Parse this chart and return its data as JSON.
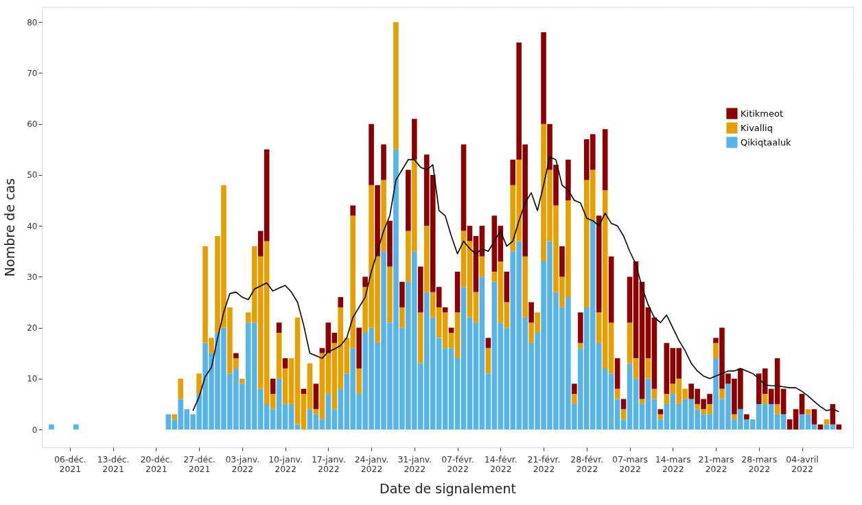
{
  "chart_data": {
    "type": "bar",
    "stacked": true,
    "xlabel": "Date de signalement",
    "ylabel": "Nombre de cas",
    "legend": "top right",
    "grid": true,
    "x": [
      "2021-12-03",
      "2021-12-07",
      "2021-12-22",
      "2021-12-23",
      "2021-12-24",
      "2021-12-25",
      "2021-12-26",
      "2021-12-27",
      "2021-12-28",
      "2021-12-29",
      "2021-12-30",
      "2021-12-31",
      "2022-01-01",
      "2022-01-02",
      "2022-01-03",
      "2022-01-04",
      "2022-01-05",
      "2022-01-06",
      "2022-01-07",
      "2022-01-08",
      "2022-01-09",
      "2022-01-10",
      "2022-01-11",
      "2022-01-12",
      "2022-01-13",
      "2022-01-14",
      "2022-01-15",
      "2022-01-16",
      "2022-01-17",
      "2022-01-18",
      "2022-01-19",
      "2022-01-20",
      "2022-01-21",
      "2022-01-22",
      "2022-01-23",
      "2022-01-24",
      "2022-01-25",
      "2022-01-26",
      "2022-01-27",
      "2022-01-28",
      "2022-01-29",
      "2022-01-30",
      "2022-01-31",
      "2022-02-01",
      "2022-02-02",
      "2022-02-03",
      "2022-02-04",
      "2022-02-05",
      "2022-02-06",
      "2022-02-07",
      "2022-02-08",
      "2022-02-09",
      "2022-02-10",
      "2022-02-11",
      "2022-02-12",
      "2022-02-13",
      "2022-02-14",
      "2022-02-15",
      "2022-02-16",
      "2022-02-17",
      "2022-02-18",
      "2022-02-19",
      "2022-02-20",
      "2022-02-21",
      "2022-02-22",
      "2022-02-23",
      "2022-02-24",
      "2022-02-25",
      "2022-02-26",
      "2022-02-27",
      "2022-02-28",
      "2022-03-01",
      "2022-03-02",
      "2022-03-03",
      "2022-03-04",
      "2022-03-05",
      "2022-03-06",
      "2022-03-07",
      "2022-03-08",
      "2022-03-09",
      "2022-03-10",
      "2022-03-11",
      "2022-03-12",
      "2022-03-13",
      "2022-03-14",
      "2022-03-15",
      "2022-03-16",
      "2022-03-17",
      "2022-03-18",
      "2022-03-19",
      "2022-03-20",
      "2022-03-21",
      "2022-03-22",
      "2022-03-23",
      "2022-03-24",
      "2022-03-25",
      "2022-03-26",
      "2022-03-27",
      "2022-03-28",
      "2022-03-29",
      "2022-03-30",
      "2022-03-31",
      "2022-04-01",
      "2022-04-02",
      "2022-04-03",
      "2022-04-04",
      "2022-04-05",
      "2022-04-06",
      "2022-04-07",
      "2022-04-08",
      "2022-04-09",
      "2022-04-10"
    ],
    "series": [
      {
        "name": "Qikiqtaaluk",
        "color": "#56b4e9",
        "values": [
          1,
          1,
          3,
          2,
          6,
          4,
          3,
          7,
          17,
          15,
          19,
          20,
          11,
          12,
          9,
          21,
          21,
          8,
          5,
          4,
          10,
          5,
          5,
          1,
          0,
          4,
          3,
          2,
          7,
          4,
          8,
          11,
          16,
          7,
          19,
          20,
          17,
          35,
          21,
          55,
          20,
          29,
          35,
          13,
          27,
          22,
          18,
          16,
          16,
          14,
          28,
          22,
          21,
          30,
          11,
          29,
          21,
          20,
          35,
          37,
          22,
          17,
          19,
          33,
          37,
          27,
          24,
          26,
          5,
          16,
          24,
          41,
          17,
          12,
          11,
          6,
          2,
          13,
          10,
          5,
          10,
          6,
          2,
          5,
          7,
          5,
          6,
          6,
          4,
          3,
          3,
          14,
          6,
          9,
          2,
          4,
          2,
          2,
          5,
          5,
          5,
          3,
          3,
          0,
          0,
          3,
          3,
          1,
          0,
          1,
          1,
          0
        ]
      },
      {
        "name": "Kivalliq",
        "color": "#e69f00",
        "values": [
          0,
          0,
          0,
          1,
          4,
          0,
          0,
          4,
          19,
          3,
          19,
          28,
          13,
          2,
          1,
          2,
          15,
          26,
          32,
          3,
          9,
          7,
          9,
          21,
          7,
          9,
          1,
          13,
          8,
          13,
          16,
          7,
          26,
          5,
          9,
          28,
          17,
          14,
          11,
          25,
          4,
          10,
          18,
          10,
          13,
          5,
          6,
          7,
          3,
          9,
          11,
          15,
          6,
          4,
          5,
          2,
          12,
          5,
          13,
          16,
          12,
          4,
          4,
          27,
          14,
          17,
          6,
          19,
          2,
          1,
          25,
          10,
          6,
          35,
          10,
          2,
          2,
          8,
          4,
          1,
          4,
          2,
          1,
          2,
          2,
          5,
          2,
          0,
          1,
          1,
          2,
          3,
          2,
          0,
          1,
          0,
          0,
          0,
          0,
          2,
          0,
          2,
          0,
          0,
          0,
          0,
          1,
          0,
          0,
          1,
          0,
          0
        ]
      },
      {
        "name": "Kitikmeot",
        "color": "#8b0000",
        "values": [
          0,
          0,
          0,
          0,
          0,
          0,
          0,
          0,
          0,
          0,
          0,
          0,
          0,
          1,
          0,
          0,
          0,
          5,
          18,
          3,
          2,
          2,
          0,
          0,
          1,
          0,
          5,
          1,
          6,
          2,
          2,
          0,
          2,
          8,
          2,
          12,
          14,
          7,
          9,
          0,
          5,
          12,
          8,
          9,
          14,
          23,
          4,
          1,
          1,
          8,
          17,
          3,
          11,
          6,
          2,
          11,
          7,
          6,
          5,
          23,
          22,
          4,
          0,
          18,
          9,
          8,
          6,
          8,
          2,
          6,
          8,
          7,
          19,
          12,
          13,
          6,
          2,
          9,
          19,
          23,
          10,
          14,
          1,
          10,
          7,
          6,
          0,
          3,
          3,
          2,
          2,
          1,
          12,
          2,
          7,
          8,
          1,
          0,
          6,
          5,
          3,
          9,
          5,
          2,
          4,
          4,
          0,
          3,
          1,
          0,
          4,
          1
        ]
      },
      {
        "type": "line",
        "color": "#000000",
        "x": [
          "2021-12-26",
          "2021-12-27",
          "2021-12-28",
          "2021-12-29",
          "2021-12-30",
          "2021-12-31",
          "2022-01-01",
          "2022-01-02",
          "2022-01-03",
          "2022-01-04",
          "2022-01-05",
          "2022-01-06",
          "2022-01-07",
          "2022-01-08",
          "2022-01-09",
          "2022-01-10",
          "2022-01-11",
          "2022-01-12",
          "2022-01-13",
          "2022-01-14",
          "2022-01-15",
          "2022-01-16",
          "2022-01-17",
          "2022-01-18",
          "2022-01-19",
          "2022-01-20",
          "2022-01-21",
          "2022-01-22",
          "2022-01-23",
          "2022-01-24",
          "2022-01-25",
          "2022-01-26",
          "2022-01-27",
          "2022-01-28",
          "2022-01-29",
          "2022-01-30",
          "2022-01-31",
          "2022-02-01",
          "2022-02-02",
          "2022-02-03",
          "2022-02-04",
          "2022-02-05",
          "2022-02-06",
          "2022-02-07",
          "2022-02-08",
          "2022-02-09",
          "2022-02-10",
          "2022-02-11",
          "2022-02-12",
          "2022-02-13",
          "2022-02-14",
          "2022-02-15",
          "2022-02-16",
          "2022-02-17",
          "2022-02-18",
          "2022-02-19",
          "2022-02-20",
          "2022-02-21",
          "2022-02-22",
          "2022-02-23",
          "2022-02-24",
          "2022-02-25",
          "2022-02-26",
          "2022-02-27",
          "2022-02-28",
          "2022-03-01",
          "2022-03-02",
          "2022-03-03",
          "2022-03-04",
          "2022-03-05",
          "2022-03-06",
          "2022-03-07",
          "2022-03-08",
          "2022-03-09",
          "2022-03-10",
          "2022-03-11",
          "2022-03-12",
          "2022-03-13",
          "2022-03-14",
          "2022-03-15",
          "2022-03-16",
          "2022-03-17",
          "2022-03-18",
          "2022-03-19",
          "2022-03-20",
          "2022-03-21",
          "2022-03-22",
          "2022-03-23",
          "2022-03-24",
          "2022-03-25",
          "2022-03-26",
          "2022-03-27",
          "2022-03-28",
          "2022-03-29",
          "2022-03-30",
          "2022-03-31",
          "2022-04-01",
          "2022-04-02",
          "2022-04-03",
          "2022-04-04",
          "2022-04-05",
          "2022-04-06",
          "2022-04-07",
          "2022-04-08",
          "2022-04-09",
          "2022-04-10"
        ],
        "values": [
          3.7,
          6.4,
          10.4,
          12.2,
          17.9,
          23,
          26.7,
          27,
          26,
          25.5,
          27.6,
          28.2,
          28.8,
          27.2,
          27.8,
          28.3,
          27,
          25,
          20.5,
          15,
          14.5,
          14,
          15.3,
          15.8,
          16.5,
          18,
          22,
          24,
          26,
          31,
          35,
          39,
          42,
          49,
          51,
          53,
          53,
          51.5,
          51,
          52,
          43,
          42,
          38,
          34.5,
          37,
          35.5,
          34.5,
          35.5,
          35,
          37,
          39,
          36,
          37,
          41,
          44.5,
          46.5,
          43,
          48,
          53.5,
          53,
          48,
          47,
          45,
          44.5,
          41.5,
          41,
          40,
          42.5,
          40.5,
          40,
          38,
          35,
          32.5,
          28,
          24.5,
          22,
          21,
          22.5,
          20,
          17.5,
          15.5,
          13,
          11.5,
          10.5,
          10,
          10.5,
          11,
          11.5,
          11.5,
          12,
          11.5,
          11,
          10,
          8.8,
          8.6,
          8.6,
          8.4,
          8.2,
          8.2,
          7.5,
          6.6,
          5.5,
          4.5,
          3.7,
          4,
          3.5
        ]
      }
    ],
    "xlim": [
      "2021-12-02",
      "2022-04-11T18:00"
    ],
    "xticks": [
      {
        "value": "2021-12-06",
        "label": "06-déc.\n2021"
      },
      {
        "value": "2021-12-13",
        "label": "13-déc.\n2021"
      },
      {
        "value": "2021-12-20",
        "label": "20-déc.\n2021"
      },
      {
        "value": "2021-12-27",
        "label": "27-déc.\n2021"
      },
      {
        "value": "2022-01-03",
        "label": "03-janv.\n2022"
      },
      {
        "value": "2022-01-10",
        "label": "10-janv.\n2022"
      },
      {
        "value": "2022-01-17",
        "label": "17-janv.\n2022"
      },
      {
        "value": "2022-01-24",
        "label": "24-janv.\n2022"
      },
      {
        "value": "2022-01-31",
        "label": "31-janv.\n2022"
      },
      {
        "value": "2022-02-07",
        "label": "07-févr.\n2022"
      },
      {
        "value": "2022-02-14",
        "label": "14-févr.\n2022"
      },
      {
        "value": "2022-02-21",
        "label": "21-févr.\n2022"
      },
      {
        "value": "2022-02-28",
        "label": "28-févr.\n2022"
      },
      {
        "value": "2022-03-07",
        "label": "07-mars\n2022"
      },
      {
        "value": "2022-03-14",
        "label": "14-mars\n2022"
      },
      {
        "value": "2022-03-21",
        "label": "21-mars\n2022"
      },
      {
        "value": "2022-03-28",
        "label": "28-mars\n2022"
      },
      {
        "value": "2022-04-04",
        "label": "04-avril\n2022"
      }
    ],
    "ylim": [
      -3.5,
      83
    ],
    "yticks": [
      0,
      10,
      20,
      30,
      40,
      50,
      60,
      70,
      80
    ]
  }
}
